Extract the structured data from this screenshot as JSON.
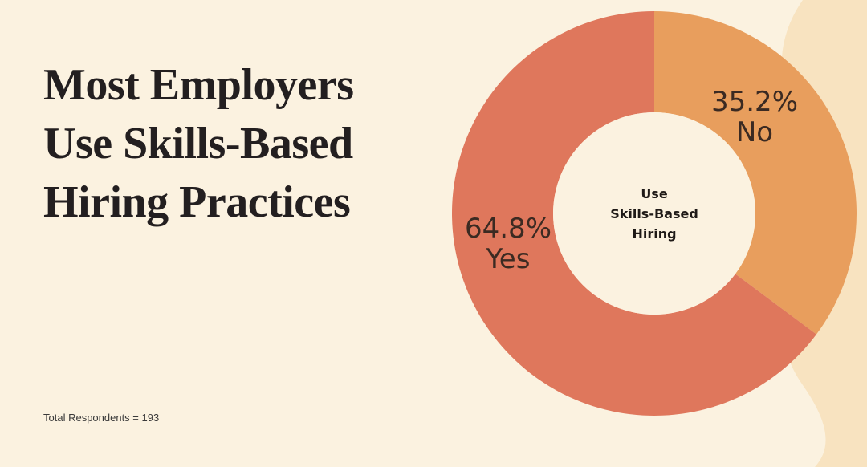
{
  "title": {
    "lines": [
      "Most Employers",
      "Use Skills-Based",
      "Hiring Practices"
    ]
  },
  "footnote": "Total Respondents = 193",
  "colors": {
    "background": "#fbf2e0",
    "wave": "#f8e3c0",
    "yes": "#df775c",
    "no": "#e89e5d",
    "hole": "#fbf2e0"
  },
  "chart_data": {
    "type": "pie",
    "donut": true,
    "total_respondents": 193,
    "center_label": [
      "Use",
      "Skills-Based",
      "Hiring"
    ],
    "slices": [
      {
        "label": "No",
        "value": 35.2,
        "display": "35.2%"
      },
      {
        "label": "Yes",
        "value": 64.8,
        "display": "64.8%"
      }
    ]
  }
}
